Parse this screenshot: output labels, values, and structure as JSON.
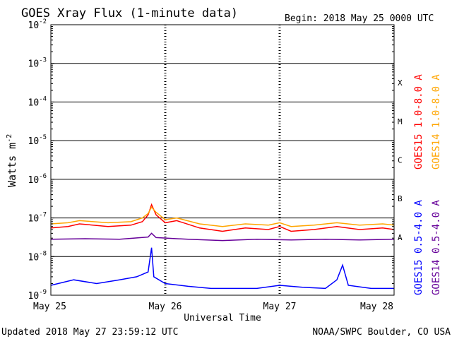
{
  "chart_data": {
    "type": "line",
    "title": "GOES Xray Flux (1-minute data)",
    "begin_label": "Begin:  2018 May 25 0000 UTC",
    "xlabel": "Universal Time",
    "ylabel_main": "Watts m",
    "ylabel_exp": "-2",
    "y_scale": "log",
    "ylim": [
      1e-09,
      0.01
    ],
    "y_ticks": [
      {
        "value": 0.01,
        "exp": "-2"
      },
      {
        "value": 0.001,
        "exp": "-3"
      },
      {
        "value": 0.0001,
        "exp": "-4"
      },
      {
        "value": 1e-05,
        "exp": "-5"
      },
      {
        "value": 1e-06,
        "exp": "-6"
      },
      {
        "value": 1e-07,
        "exp": "-7"
      },
      {
        "value": 1e-08,
        "exp": "-8"
      },
      {
        "value": 1e-09,
        "exp": "-9"
      }
    ],
    "y_tick_base": "10",
    "x_unit": "days",
    "xlim": [
      0,
      3
    ],
    "x_ticks": [
      {
        "value": 0,
        "label": "May 25"
      },
      {
        "value": 1,
        "label": "May 26"
      },
      {
        "value": 2,
        "label": "May 27"
      },
      {
        "value": 3,
        "label": "May 28"
      }
    ],
    "flare_classes": [
      {
        "label": "X",
        "value": 0.0001
      },
      {
        "label": "M",
        "value": 1e-05
      },
      {
        "label": "C",
        "value": 1e-06
      },
      {
        "label": "B",
        "value": 1e-07
      },
      {
        "label": "A",
        "value": 1e-08
      }
    ],
    "series": [
      {
        "name": "GOES15 1.0-8.0 A",
        "color": "#ff0000",
        "x": [
          0,
          0.15,
          0.25,
          0.5,
          0.7,
          0.8,
          0.85,
          0.88,
          0.92,
          1.0,
          1.1,
          1.3,
          1.5,
          1.7,
          1.9,
          2.0,
          2.1,
          2.3,
          2.5,
          2.7,
          2.9,
          3.0
        ],
        "y": [
          5.5e-08,
          6e-08,
          7e-08,
          6e-08,
          6.5e-08,
          8e-08,
          1.2e-07,
          2.2e-07,
          1.2e-07,
          7.5e-08,
          8.5e-08,
          5.5e-08,
          4.5e-08,
          5.5e-08,
          5e-08,
          6e-08,
          4.5e-08,
          5e-08,
          6e-08,
          5e-08,
          5.5e-08,
          5e-08
        ]
      },
      {
        "name": "GOES14 1.0-8.0 A",
        "color": "#ffa500",
        "x": [
          0,
          0.15,
          0.25,
          0.5,
          0.7,
          0.8,
          0.85,
          0.88,
          0.92,
          1.0,
          1.1,
          1.3,
          1.5,
          1.7,
          1.9,
          2.0,
          2.1,
          2.3,
          2.5,
          2.7,
          2.9,
          3.0
        ],
        "y": [
          7e-08,
          7.5e-08,
          8.5e-08,
          7.5e-08,
          8e-08,
          1e-07,
          1.3e-07,
          1.9e-07,
          1.4e-07,
          9e-08,
          1e-07,
          7e-08,
          6e-08,
          7e-08,
          6.5e-08,
          7.5e-08,
          6e-08,
          6.5e-08,
          7.5e-08,
          6.5e-08,
          7e-08,
          6.5e-08
        ]
      },
      {
        "name": "GOES15 0.5-4.0 A",
        "color": "#0000ff",
        "x": [
          0,
          0.2,
          0.4,
          0.6,
          0.75,
          0.85,
          0.88,
          0.9,
          1.0,
          1.2,
          1.4,
          1.6,
          1.8,
          2.0,
          2.2,
          2.4,
          2.5,
          2.55,
          2.6,
          2.8,
          3.0
        ],
        "y": [
          1.8e-09,
          2.5e-09,
          2e-09,
          2.5e-09,
          3e-09,
          4e-09,
          1.7e-08,
          3e-09,
          2e-09,
          1.7e-09,
          1.5e-09,
          1.5e-09,
          1.5e-09,
          1.8e-09,
          1.6e-09,
          1.5e-09,
          2.5e-09,
          6e-09,
          1.8e-09,
          1.5e-09,
          1.5e-09
        ]
      },
      {
        "name": "GOES14 0.5-4.0 A",
        "color": "#660099",
        "x": [
          0,
          0.3,
          0.6,
          0.85,
          0.88,
          0.92,
          1.2,
          1.5,
          1.8,
          2.1,
          2.4,
          2.7,
          3.0
        ],
        "y": [
          2.8e-08,
          2.9e-08,
          2.8e-08,
          3.2e-08,
          4e-08,
          3.1e-08,
          2.8e-08,
          2.6e-08,
          2.8e-08,
          2.7e-08,
          2.8e-08,
          2.7e-08,
          2.8e-08
        ]
      }
    ],
    "grid": true,
    "legend_position": "right"
  },
  "footer": {
    "updated": "Updated 2018 May 27 23:59:12 UTC",
    "source": "NOAA/SWPC Boulder, CO USA"
  }
}
